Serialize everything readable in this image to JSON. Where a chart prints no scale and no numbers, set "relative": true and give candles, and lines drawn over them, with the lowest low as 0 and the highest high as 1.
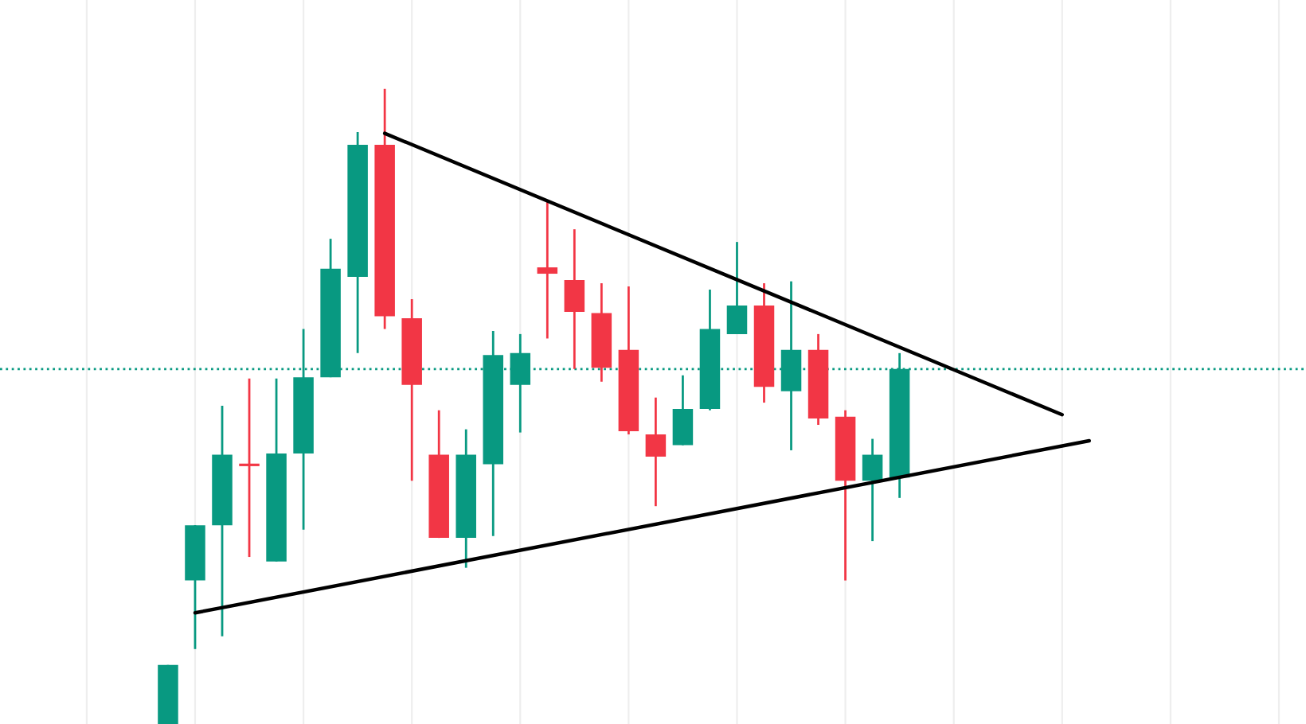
{
  "chart_data": {
    "type": "candlestick",
    "relative": true,
    "categories": [
      null,
      null,
      null,
      null,
      null,
      null,
      null,
      null,
      null,
      null,
      null,
      null,
      null,
      null,
      null,
      null,
      null,
      null,
      null,
      null,
      null,
      null,
      null,
      null,
      null,
      null,
      null,
      null,
      null,
      null,
      null,
      null,
      null,
      null,
      null
    ],
    "grid": "x",
    "ohlc": [
      [
        0,
        0.093,
        0,
        0.093
      ],
      [
        0.226,
        0.313,
        0.118,
        0.313
      ],
      [
        0.313,
        0.501,
        0.138,
        0.424
      ],
      [
        0.409,
        0.544,
        0.263,
        0.406
      ],
      [
        0.256,
        0.544,
        0.256,
        0.426
      ],
      [
        0.426,
        0.622,
        0.306,
        0.546
      ],
      [
        0.546,
        0.764,
        0.546,
        0.717
      ],
      [
        0.704,
        0.932,
        0.584,
        0.912
      ],
      [
        0.912,
        1,
        0.622,
        0.642
      ],
      [
        0.639,
        0.669,
        0.383,
        0.534
      ],
      [
        0.424,
        0.494,
        0.293,
        0.293
      ],
      [
        0.293,
        0.464,
        0.246,
        0.424
      ],
      [
        0.409,
        0.619,
        0.296,
        0.581
      ],
      [
        0.534,
        0.614,
        0.459,
        0.584
      ],
      [
        0.719,
        0.822,
        0.607,
        0.709
      ],
      [
        0.699,
        0.779,
        0.559,
        0.649
      ],
      [
        0.647,
        0.694,
        0.539,
        0.561
      ],
      [
        0.589,
        0.689,
        0.456,
        0.461
      ],
      [
        0.456,
        0.514,
        0.343,
        0.421
      ],
      [
        0.439,
        0.549,
        0.439,
        0.496
      ],
      [
        0.496,
        0.684,
        0.494,
        0.622
      ],
      [
        0.614,
        0.759,
        0.614,
        0.659
      ],
      [
        0.659,
        0.694,
        0.506,
        0.531
      ],
      [
        0.524,
        0.697,
        0.431,
        0.589
      ],
      [
        0.589,
        0.614,
        0.471,
        0.481
      ],
      [
        0.484,
        0.494,
        0.226,
        0.383
      ],
      [
        0.383,
        0.449,
        0.288,
        0.424
      ],
      [
        0.388,
        0.584,
        0.356,
        0.559
      ],
      null,
      null,
      null,
      null,
      null,
      null,
      null
    ],
    "colors": [
      "#089981",
      "#089981",
      "#089981",
      "#f23645",
      "#089981",
      "#089981",
      "#089981",
      "#089981",
      "#f23645",
      "#f23645",
      "#f23645",
      "#089981",
      "#089981",
      "#089981",
      "#f23645",
      "#f23645",
      "#f23645",
      "#f23645",
      "#f23645",
      "#089981",
      "#089981",
      "#089981",
      "#f23645",
      "#089981",
      "#f23645",
      "#f23645",
      "#089981",
      "#089981",
      null,
      null,
      null,
      null,
      null,
      null,
      null
    ],
    "series": [
      {
        "type": "line",
        "color": "#000000",
        "values": [
          null,
          0.175,
          null,
          null,
          null,
          null,
          null,
          null,
          null,
          null,
          null,
          null,
          null,
          null,
          null,
          null,
          null,
          null,
          null,
          null,
          null,
          null,
          null,
          null,
          null,
          null,
          null,
          null,
          null,
          null,
          null,
          null,
          null,
          null,
          0.446
        ]
      },
      {
        "type": "line",
        "color": "#000000",
        "values": [
          null,
          null,
          null,
          null,
          null,
          null,
          null,
          null,
          0.93,
          null,
          null,
          null,
          null,
          null,
          null,
          null,
          null,
          null,
          null,
          null,
          null,
          null,
          null,
          null,
          null,
          null,
          null,
          null,
          null,
          null,
          null,
          null,
          null,
          0.487,
          null
        ]
      }
    ],
    "ref_lines": [
      {
        "axis": "y",
        "value": 0.559,
        "color": "#089981",
        "line_style": "dotted"
      }
    ]
  }
}
